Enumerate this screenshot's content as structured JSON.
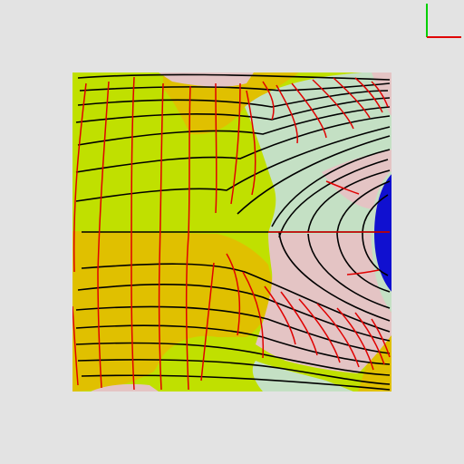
{
  "viewport": {
    "background": "#e3e3e3"
  },
  "axes_gizmo": {
    "x_axis_color": "#e00000",
    "y_axis_color": "#00d000"
  },
  "field_plot": {
    "region_colors": {
      "yellow_green": "#c0e000",
      "ochre": "#e0c000",
      "light_green": "#c4e0c4",
      "pink": "#e4c4c4",
      "blue": "#1010d0"
    },
    "line_colors": {
      "streamlines": "#000000",
      "equipotentials": "#e00000"
    }
  }
}
